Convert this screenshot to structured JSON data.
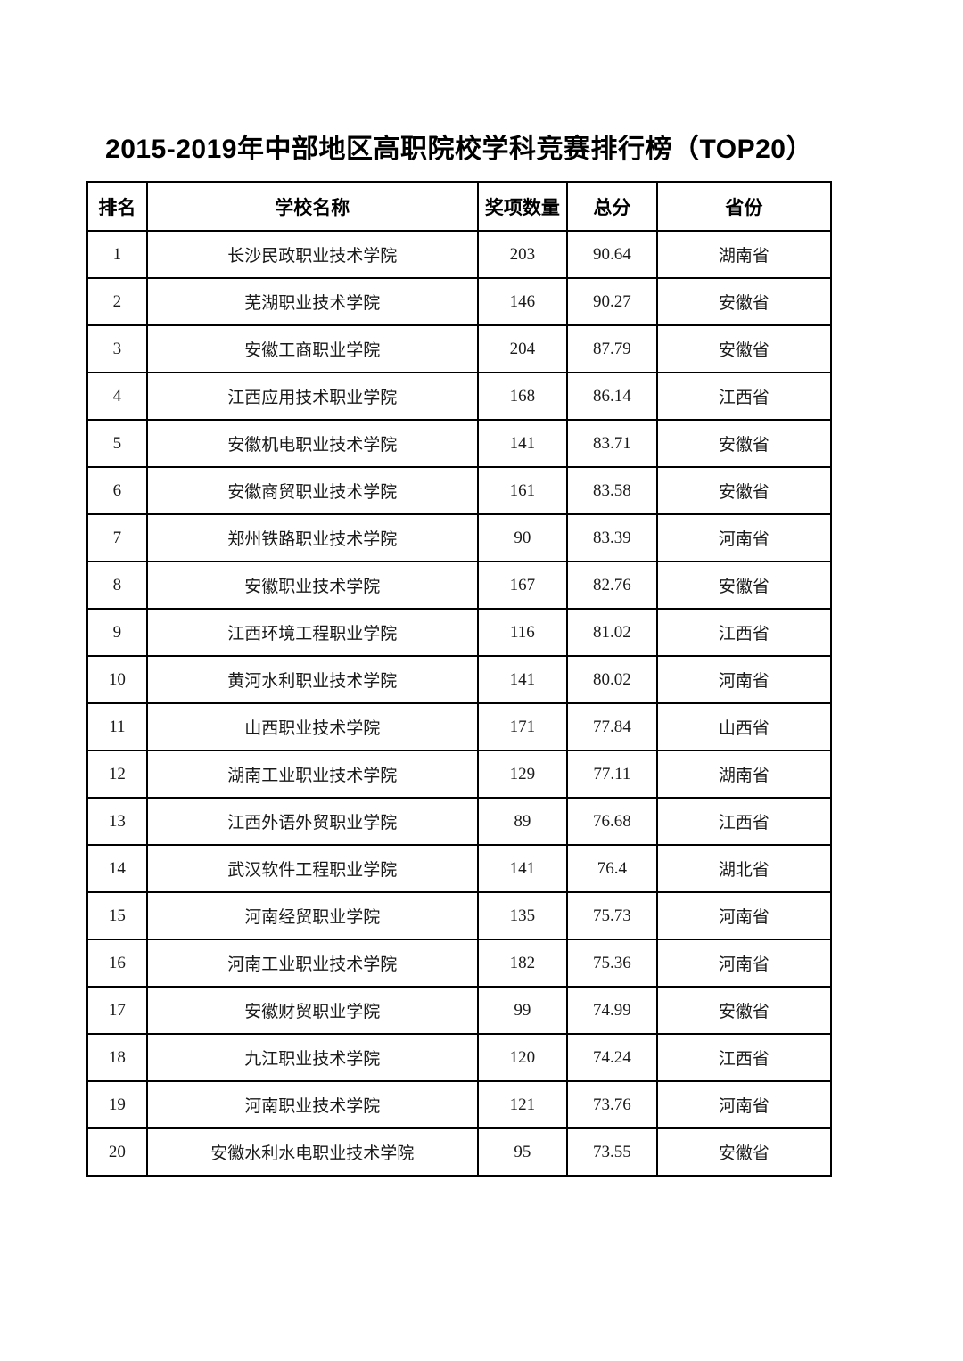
{
  "page": {
    "title": "2015-2019年中部地区高职院校学科竞赛排行榜（TOP20）"
  },
  "table": {
    "columns": [
      "排名",
      "学校名称",
      "奖项数量",
      "总分",
      "省份"
    ],
    "rows": [
      [
        "1",
        "长沙民政职业技术学院",
        "203",
        "90.64",
        "湖南省"
      ],
      [
        "2",
        "芜湖职业技术学院",
        "146",
        "90.27",
        "安徽省"
      ],
      [
        "3",
        "安徽工商职业学院",
        "204",
        "87.79",
        "安徽省"
      ],
      [
        "4",
        "江西应用技术职业学院",
        "168",
        "86.14",
        "江西省"
      ],
      [
        "5",
        "安徽机电职业技术学院",
        "141",
        "83.71",
        "安徽省"
      ],
      [
        "6",
        "安徽商贸职业技术学院",
        "161",
        "83.58",
        "安徽省"
      ],
      [
        "7",
        "郑州铁路职业技术学院",
        "90",
        "83.39",
        "河南省"
      ],
      [
        "8",
        "安徽职业技术学院",
        "167",
        "82.76",
        "安徽省"
      ],
      [
        "9",
        "江西环境工程职业学院",
        "116",
        "81.02",
        "江西省"
      ],
      [
        "10",
        "黄河水利职业技术学院",
        "141",
        "80.02",
        "河南省"
      ],
      [
        "11",
        "山西职业技术学院",
        "171",
        "77.84",
        "山西省"
      ],
      [
        "12",
        "湖南工业职业技术学院",
        "129",
        "77.11",
        "湖南省"
      ],
      [
        "13",
        "江西外语外贸职业学院",
        "89",
        "76.68",
        "江西省"
      ],
      [
        "14",
        "武汉软件工程职业学院",
        "141",
        "76.4",
        "湖北省"
      ],
      [
        "15",
        "河南经贸职业学院",
        "135",
        "75.73",
        "河南省"
      ],
      [
        "16",
        "河南工业职业技术学院",
        "182",
        "75.36",
        "河南省"
      ],
      [
        "17",
        "安徽财贸职业学院",
        "99",
        "74.99",
        "安徽省"
      ],
      [
        "18",
        "九江职业技术学院",
        "120",
        "74.24",
        "江西省"
      ],
      [
        "19",
        "河南职业技术学院",
        "121",
        "73.76",
        "河南省"
      ],
      [
        "20",
        "安徽水利水电职业技术学院",
        "95",
        "73.55",
        "安徽省"
      ]
    ]
  }
}
